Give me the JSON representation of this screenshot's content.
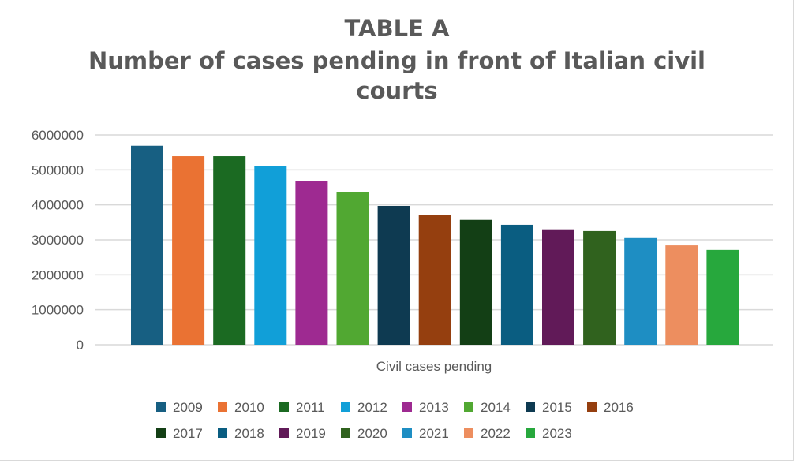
{
  "chart_data": {
    "type": "bar",
    "title_lines": [
      "TABLE A",
      "Number of cases pending in front of Italian civil",
      "courts"
    ],
    "xlabel": "Civil cases pending",
    "ylabel": "",
    "ylim": [
      0,
      6000000
    ],
    "yticks": [
      0,
      1000000,
      2000000,
      3000000,
      4000000,
      5000000,
      6000000
    ],
    "ytick_labels": [
      "0",
      "1000000",
      "2000000",
      "3000000",
      "4000000",
      "5000000",
      "6000000"
    ],
    "grid": true,
    "legend_position": "bottom",
    "categories": [
      "Civil cases pending"
    ],
    "series": [
      {
        "name": "2009",
        "values": [
          5690000
        ],
        "color": "#175f82"
      },
      {
        "name": "2010",
        "values": [
          5390000
        ],
        "color": "#ea7233"
      },
      {
        "name": "2011",
        "values": [
          5390000
        ],
        "color": "#1b6a22"
      },
      {
        "name": "2012",
        "values": [
          5100000
        ],
        "color": "#119fd8"
      },
      {
        "name": "2013",
        "values": [
          4670000
        ],
        "color": "#9e2a91"
      },
      {
        "name": "2014",
        "values": [
          4360000
        ],
        "color": "#51a832"
      },
      {
        "name": "2015",
        "values": [
          3970000
        ],
        "color": "#0e3a51"
      },
      {
        "name": "2016",
        "values": [
          3720000
        ],
        "color": "#953f0f"
      },
      {
        "name": "2017",
        "values": [
          3570000
        ],
        "color": "#133f15"
      },
      {
        "name": "2018",
        "values": [
          3430000
        ],
        "color": "#0a5d81"
      },
      {
        "name": "2019",
        "values": [
          3300000
        ],
        "color": "#611a58"
      },
      {
        "name": "2020",
        "values": [
          3250000
        ],
        "color": "#30621e"
      },
      {
        "name": "2021",
        "values": [
          3050000
        ],
        "color": "#1e8ec3"
      },
      {
        "name": "2022",
        "values": [
          2840000
        ],
        "color": "#ed8e5f"
      },
      {
        "name": "2023",
        "values": [
          2710000
        ],
        "color": "#27a83d"
      }
    ]
  }
}
